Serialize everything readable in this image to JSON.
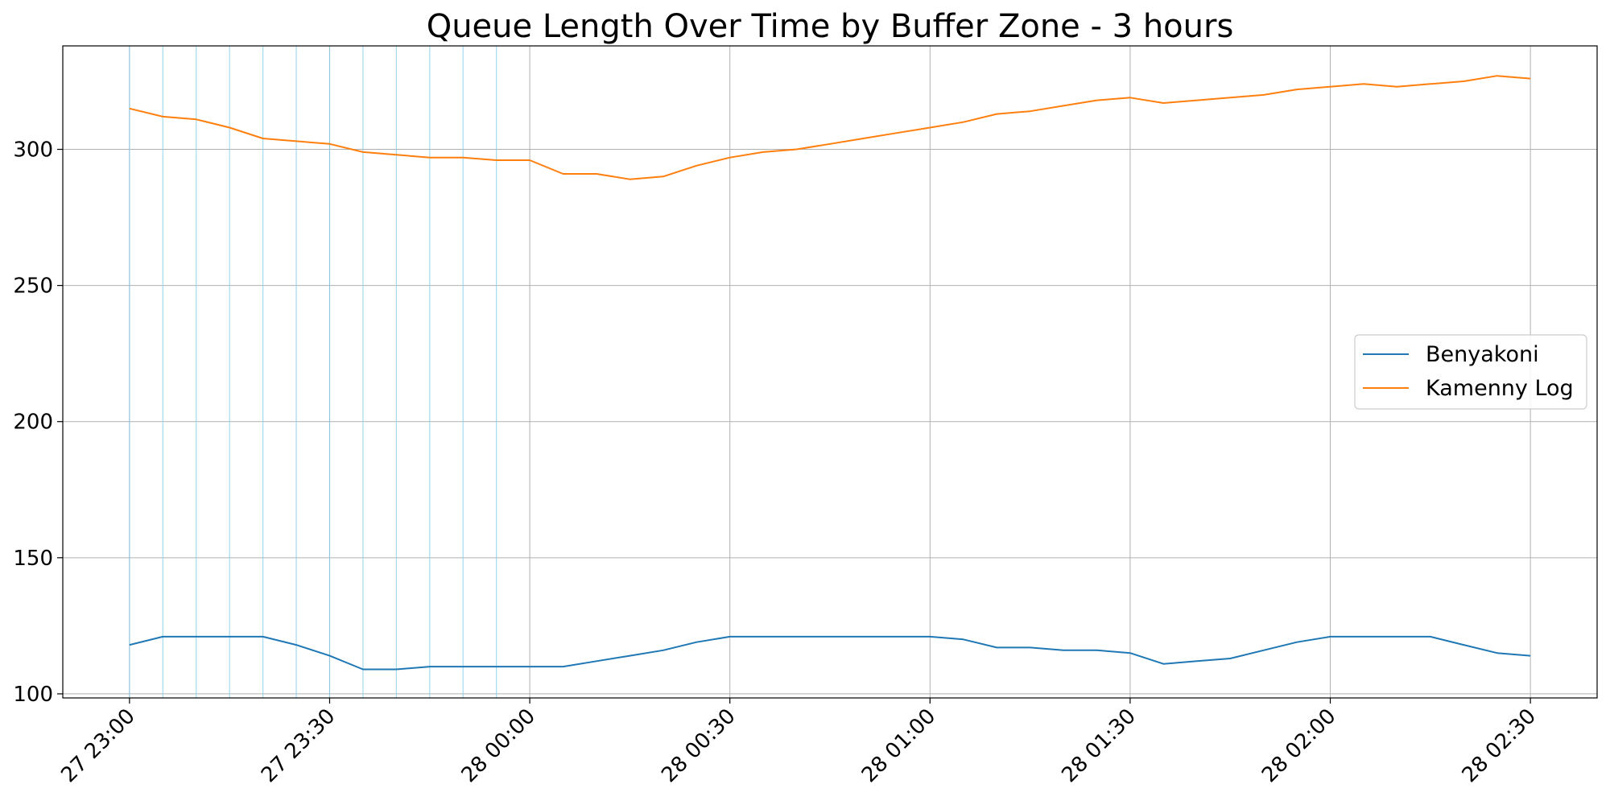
{
  "chart_data": {
    "type": "line",
    "title": "Queue Length Over Time by Buffer Zone - 3 hours",
    "xlabel": "",
    "ylabel": "",
    "x_ticks": [
      "27 23:00",
      "27 23:30",
      "28 00:00",
      "28 00:30",
      "28 01:00",
      "28 01:30",
      "28 02:00",
      "28 02:30"
    ],
    "y_ticks": [
      "100",
      "150",
      "200",
      "250",
      "300"
    ],
    "ylim": [
      98.5,
      338
    ],
    "xlim": [
      "27 22:50",
      "28 02:40"
    ],
    "grid": true,
    "legend_position": "center-right",
    "highlight_vertical_lines": [
      "27 23:00",
      "27 23:05",
      "27 23:10",
      "27 23:15",
      "27 23:20",
      "27 23:25",
      "27 23:30",
      "27 23:35",
      "27 23:40",
      "27 23:45",
      "27 23:50",
      "27 23:55"
    ],
    "highlight_color": "#87ceeb",
    "x": [
      "27 23:00",
      "27 23:05",
      "27 23:10",
      "27 23:15",
      "27 23:20",
      "27 23:25",
      "27 23:30",
      "27 23:35",
      "27 23:40",
      "27 23:45",
      "27 23:50",
      "27 23:55",
      "28 00:00",
      "28 00:05",
      "28 00:10",
      "28 00:15",
      "28 00:20",
      "28 00:25",
      "28 00:30",
      "28 00:35",
      "28 00:40",
      "28 00:45",
      "28 00:50",
      "28 00:55",
      "28 01:00",
      "28 01:05",
      "28 01:10",
      "28 01:15",
      "28 01:20",
      "28 01:25",
      "28 01:30",
      "28 01:35",
      "28 01:40",
      "28 01:45",
      "28 01:50",
      "28 01:55",
      "28 02:00",
      "28 02:05",
      "28 02:10",
      "28 02:15",
      "28 02:20",
      "28 02:25",
      "28 02:30"
    ],
    "series": [
      {
        "name": "Benyakoni",
        "color": "#1f77b4",
        "values": [
          118,
          121,
          121,
          121,
          121,
          118,
          114,
          109,
          109,
          110,
          110,
          110,
          110,
          110,
          112,
          114,
          116,
          119,
          121,
          121,
          121,
          121,
          121,
          121,
          121,
          120,
          117,
          117,
          116,
          116,
          115,
          111,
          112,
          113,
          116,
          119,
          121,
          121,
          121,
          121,
          118,
          115,
          114
        ]
      },
      {
        "name": "Kamenny Log",
        "color": "#ff7f0e",
        "values": [
          315,
          312,
          311,
          308,
          304,
          303,
          302,
          299,
          298,
          297,
          297,
          296,
          296,
          291,
          291,
          289,
          290,
          294,
          297,
          299,
          300,
          302,
          304,
          306,
          308,
          310,
          313,
          314,
          316,
          318,
          319,
          317,
          318,
          319,
          320,
          322,
          323,
          324,
          323,
          324,
          325,
          327,
          326
        ]
      }
    ]
  }
}
